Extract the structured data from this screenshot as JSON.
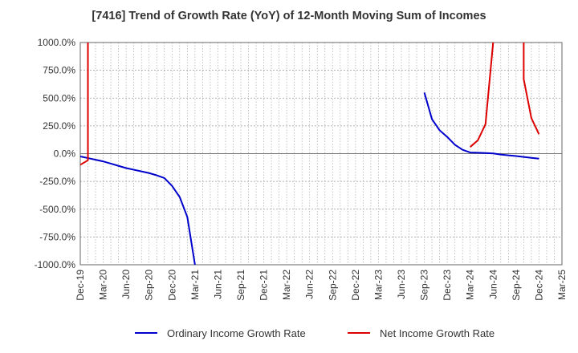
{
  "chart_data": {
    "type": "line",
    "title": "[7416]  Trend of Growth Rate (YoY) of 12-Month Moving Sum of Incomes",
    "xlabel": "",
    "ylabel": "",
    "ylim": [
      -1000,
      1000
    ],
    "y_ticks": [
      "1000.0%",
      "750.0%",
      "500.0%",
      "250.0%",
      "0.0%",
      "-250.0%",
      "-500.0%",
      "-750.0%",
      "-1000.0%"
    ],
    "y_tick_values": [
      1000,
      750,
      500,
      250,
      0,
      -250,
      -500,
      -750,
      -1000
    ],
    "x_tick_labels": [
      "Dec-19",
      "Mar-20",
      "Jun-20",
      "Sep-20",
      "Dec-20",
      "Mar-21",
      "Jun-21",
      "Sep-21",
      "Dec-21",
      "Mar-22",
      "Jun-22",
      "Sep-22",
      "Dec-22",
      "Mar-23",
      "Jun-23",
      "Sep-23",
      "Dec-23",
      "Mar-24",
      "Jun-24",
      "Sep-24",
      "Dec-24",
      "Mar-25"
    ],
    "grid": true,
    "legend_position": "bottom",
    "series": [
      {
        "name": "Ordinary Income Growth Rate",
        "color": "#0000cc",
        "points": [
          [
            "2019-12",
            -25
          ],
          [
            "2020-01",
            -40
          ],
          [
            "2020-02",
            -55
          ],
          [
            "2020-03",
            -70
          ],
          [
            "2020-04",
            -90
          ],
          [
            "2020-05",
            -110
          ],
          [
            "2020-06",
            -130
          ],
          [
            "2020-07",
            -145
          ],
          [
            "2020-08",
            -160
          ],
          [
            "2020-09",
            -175
          ],
          [
            "2020-10",
            -195
          ],
          [
            "2020-11",
            -220
          ],
          [
            "2020-12",
            -290
          ],
          [
            "2021-01",
            -390
          ],
          [
            "2021-02",
            -570
          ],
          [
            "2021-03",
            -1000
          ],
          null,
          [
            "2023-09",
            550
          ],
          [
            "2023-10",
            310
          ],
          [
            "2023-11",
            210
          ],
          [
            "2023-12",
            150
          ],
          [
            "2024-01",
            80
          ],
          [
            "2024-02",
            35
          ],
          [
            "2024-03",
            10
          ],
          [
            "2024-04",
            8
          ],
          [
            "2024-05",
            5
          ],
          [
            "2024-06",
            2
          ],
          [
            "2024-07",
            -8
          ],
          [
            "2024-08",
            -15
          ],
          [
            "2024-09",
            -22
          ],
          [
            "2024-10",
            -30
          ],
          [
            "2024-11",
            -38
          ],
          [
            "2024-12",
            -45
          ]
        ]
      },
      {
        "name": "Net Income Growth Rate",
        "color": "#dd0000",
        "points": [
          [
            "2019-12",
            -100
          ],
          [
            "2020-01",
            -60
          ],
          [
            "2020-01",
            1000
          ],
          null,
          [
            "2024-03",
            60
          ],
          [
            "2024-04",
            120
          ],
          [
            "2024-05",
            265
          ],
          [
            "2024-06",
            1000
          ],
          null,
          [
            "2024-10",
            1000
          ],
          [
            "2024-10",
            670
          ],
          [
            "2024-11",
            320
          ],
          [
            "2024-12",
            175
          ]
        ]
      }
    ]
  }
}
